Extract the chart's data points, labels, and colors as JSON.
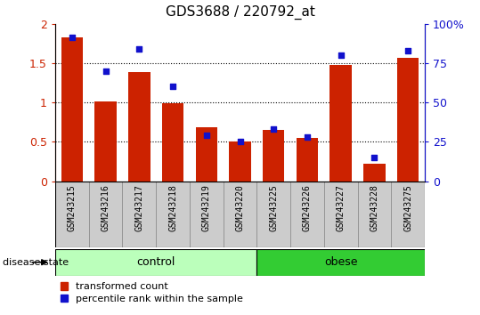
{
  "title": "GDS3688 / 220792_at",
  "samples": [
    "GSM243215",
    "GSM243216",
    "GSM243217",
    "GSM243218",
    "GSM243219",
    "GSM243220",
    "GSM243225",
    "GSM243226",
    "GSM243227",
    "GSM243228",
    "GSM243275"
  ],
  "transformed_count": [
    1.82,
    1.01,
    1.39,
    0.99,
    0.68,
    0.5,
    0.65,
    0.55,
    1.47,
    0.22,
    1.57
  ],
  "percentile_rank": [
    91,
    70,
    84,
    60,
    29,
    25,
    33,
    28,
    80,
    15,
    83
  ],
  "n_control": 6,
  "n_obese": 5,
  "bar_color": "#cc2200",
  "dot_color": "#1111cc",
  "control_color": "#bbffbb",
  "obese_color": "#33cc33",
  "tick_label_bg": "#cccccc",
  "ylim_left": [
    0,
    2
  ],
  "ylim_right": [
    0,
    100
  ],
  "yticks_left": [
    0,
    0.5,
    1.0,
    1.5,
    2.0
  ],
  "ytick_labels_left": [
    "0",
    "0.5",
    "1",
    "1.5",
    "2"
  ],
  "yticks_right": [
    0,
    25,
    50,
    75,
    100
  ],
  "ytick_labels_right": [
    "0",
    "25",
    "50",
    "75",
    "100%"
  ],
  "legend_items": [
    "transformed count",
    "percentile rank within the sample"
  ],
  "disease_state_label": "disease state",
  "control_label": "control",
  "obese_label": "obese"
}
